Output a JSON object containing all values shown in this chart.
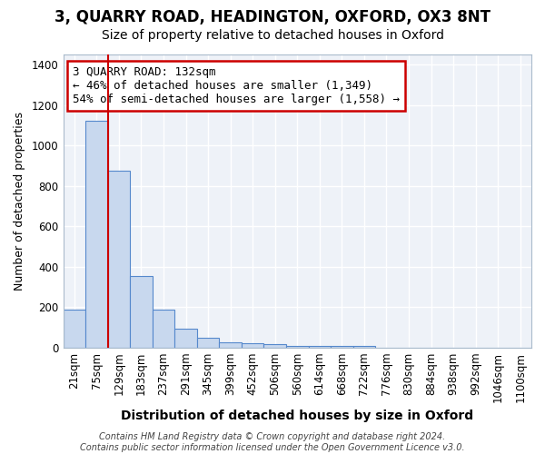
{
  "title1": "3, QUARRY ROAD, HEADINGTON, OXFORD, OX3 8NT",
  "title2": "Size of property relative to detached houses in Oxford",
  "xlabel": "Distribution of detached houses by size in Oxford",
  "ylabel": "Number of detached properties",
  "bin_labels": [
    "21sqm",
    "75sqm",
    "129sqm",
    "183sqm",
    "237sqm",
    "291sqm",
    "345sqm",
    "399sqm",
    "452sqm",
    "506sqm",
    "560sqm",
    "614sqm",
    "668sqm",
    "722sqm",
    "776sqm",
    "830sqm",
    "884sqm",
    "938sqm",
    "992sqm",
    "1046sqm",
    "1100sqm"
  ],
  "bar_heights": [
    190,
    1120,
    875,
    355,
    190,
    95,
    50,
    25,
    20,
    15,
    10,
    10,
    10,
    10,
    0,
    0,
    0,
    0,
    0,
    0,
    0
  ],
  "bar_color": "#c8d8ee",
  "bar_edge_color": "#5588cc",
  "bar_edge_width": 0.8,
  "property_line_color": "#cc0000",
  "annotation_text": "3 QUARRY ROAD: 132sqm\n← 46% of detached houses are smaller (1,349)\n54% of semi-detached houses are larger (1,558) →",
  "annotation_box_color": "#ffffff",
  "annotation_box_edge_color": "#cc0000",
  "ylim": [
    0,
    1450
  ],
  "yticks": [
    0,
    200,
    400,
    600,
    800,
    1000,
    1200,
    1400
  ],
  "plot_bg_color": "#eef2f8",
  "fig_bg_color": "#ffffff",
  "grid_color": "#ffffff",
  "footer_text": "Contains HM Land Registry data © Crown copyright and database right 2024.\nContains public sector information licensed under the Open Government Licence v3.0.",
  "title1_fontsize": 12,
  "title2_fontsize": 10,
  "xlabel_fontsize": 10,
  "ylabel_fontsize": 9,
  "tick_fontsize": 8.5,
  "annot_fontsize": 9
}
